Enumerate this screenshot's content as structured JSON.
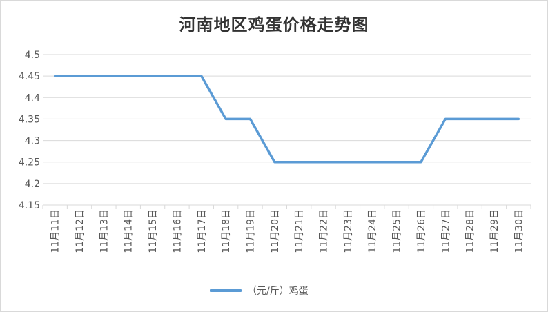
{
  "chart_data": {
    "type": "line",
    "title": "河南地区鸡蛋价格走势图",
    "xlabel": "",
    "ylabel": "",
    "categories": [
      "11月11日",
      "11月12日",
      "11月13日",
      "11月14日",
      "11月15日",
      "11月16日",
      "11月17日",
      "11月18日",
      "11月19日",
      "11月20日",
      "11月21日",
      "11月22日",
      "11月23日",
      "11月24日",
      "11月25日",
      "11月26日",
      "11月27日",
      "11月28日",
      "11月29日",
      "11月30日"
    ],
    "series": [
      {
        "name": "（元/斤）鸡蛋",
        "values": [
          4.45,
          4.45,
          4.45,
          4.45,
          4.45,
          4.45,
          4.45,
          4.35,
          4.35,
          4.25,
          4.25,
          4.25,
          4.25,
          4.25,
          4.25,
          4.25,
          4.35,
          4.35,
          4.35,
          4.35
        ],
        "color": "#5b9bd5"
      }
    ],
    "yticks": [
      "4.15",
      "4.2",
      "4.25",
      "4.3",
      "4.35",
      "4.4",
      "4.45",
      "4.5"
    ],
    "ylim": [
      4.15,
      4.5
    ],
    "grid": true,
    "legend": "bottom"
  },
  "colors": {
    "gridline": "#d9d9d9",
    "axis_text": "#595959",
    "line": "#5b9bd5"
  }
}
